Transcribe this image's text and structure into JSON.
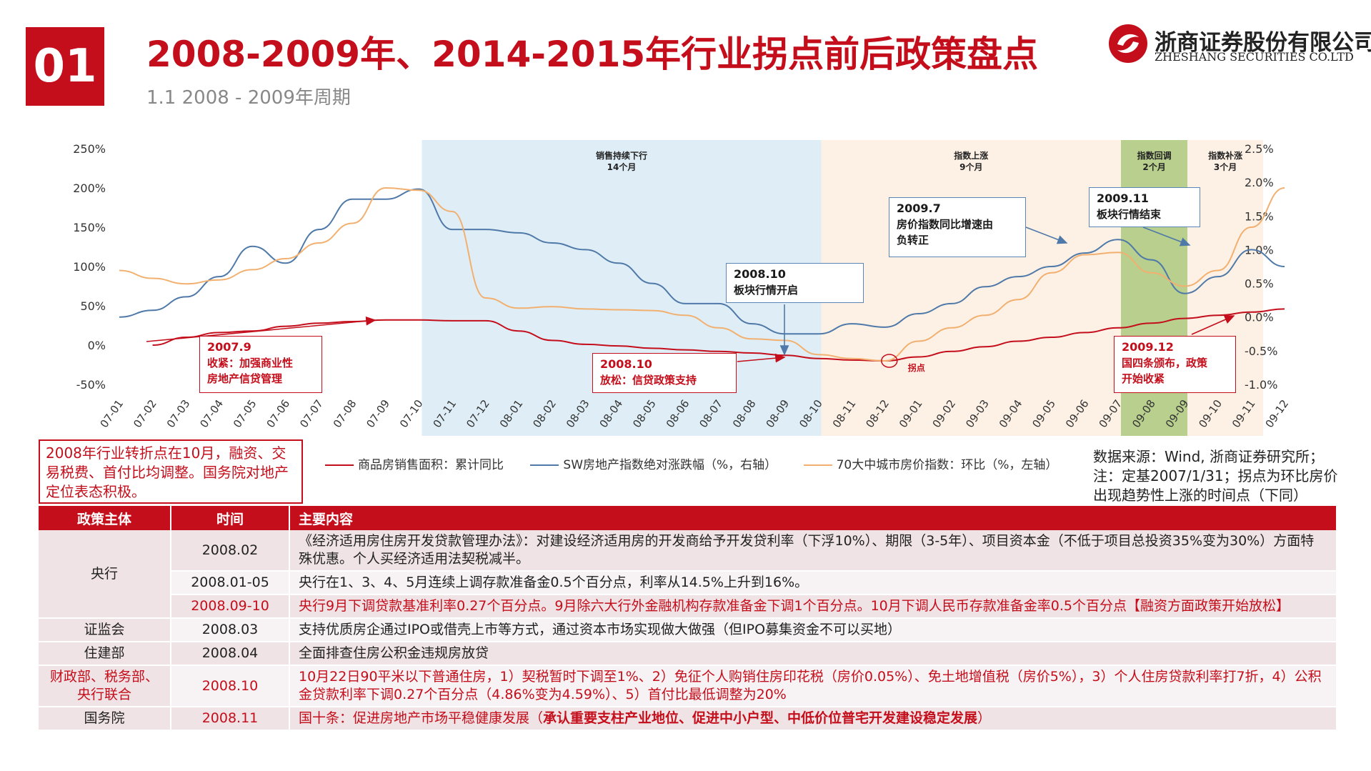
{
  "header": {
    "section_number": "01",
    "title": "2008-2009年、2014-2015年行业拐点前后政策盘点",
    "subtitle": "1.1 2008 - 2009年周期",
    "logo_cn": "浙商证券股份有限公司",
    "logo_en": "ZHESHANG SECURITIES CO.LTD",
    "brand_color": "#c40e1b"
  },
  "chart_data": {
    "type": "line",
    "x": [
      "07-01",
      "07-02",
      "07-03",
      "07-04",
      "07-05",
      "07-06",
      "07-07",
      "07-08",
      "07-09",
      "07-10",
      "07-11",
      "07-12",
      "08-01",
      "08-02",
      "08-03",
      "08-04",
      "08-05",
      "08-06",
      "08-07",
      "08-08",
      "08-09",
      "08-10",
      "08-11",
      "08-12",
      "09-01",
      "09-02",
      "09-03",
      "09-04",
      "09-05",
      "09-06",
      "09-07",
      "09-08",
      "09-09",
      "09-10",
      "09-11",
      "09-12"
    ],
    "left_axis": {
      "ticks": [
        "250%",
        "200%",
        "150%",
        "100%",
        "50%",
        "0%",
        "-50%"
      ],
      "ylim": [
        -50,
        250
      ]
    },
    "right_axis": {
      "ticks": [
        "2.5%",
        "2.0%",
        "1.5%",
        "1.0%",
        "0.5%",
        "0.0%",
        "-0.5%",
        "-1.0%"
      ],
      "ylim": [
        -1.0,
        2.5
      ]
    },
    "series": [
      {
        "name": "商品房销售面积：累计同比",
        "axis": "left",
        "color": "#c40e1b",
        "values": [
          null,
          0,
          10,
          16,
          18,
          24,
          28,
          30,
          32,
          32,
          31,
          31,
          18,
          6,
          1,
          -1,
          -4,
          -6,
          -8,
          -10,
          -13,
          -17,
          -19,
          -20,
          -15,
          -8,
          -2,
          5,
          10,
          16,
          22,
          28,
          34,
          38,
          42,
          46
        ]
      },
      {
        "name": "SW房地产指数绝对涨跌幅（%，右轴）",
        "axis": "right",
        "color": "#4f79a8",
        "values": [
          0,
          0.1,
          0.3,
          0.6,
          1.05,
          0.8,
          1.3,
          1.75,
          1.75,
          1.9,
          1.3,
          1.3,
          1.25,
          1.1,
          1.0,
          0.8,
          0.5,
          0.2,
          0.2,
          -0.1,
          -0.25,
          -0.25,
          -0.1,
          -0.15,
          0.05,
          0.2,
          0.45,
          0.6,
          0.75,
          0.95,
          1.15,
          0.85,
          0.35,
          0.6,
          1.0,
          0.75
        ]
      },
      {
        "name": "70大中城市房价指数：环比（%，左轴）",
        "axis": "left",
        "color": "#f2b070",
        "values": [
          95,
          85,
          78,
          83,
          96,
          110,
          130,
          155,
          200,
          197,
          170,
          60,
          47,
          49,
          46,
          45,
          44,
          38,
          22,
          8,
          6,
          -12,
          -17,
          -20,
          5,
          22,
          38,
          58,
          92,
          115,
          118,
          92,
          75,
          95,
          150,
          200
        ]
      }
    ],
    "phases": [
      {
        "label": "销售持续下行",
        "duration": "14个月",
        "from": "07-10",
        "to": "08-10",
        "color": "#dfeef6"
      },
      {
        "label": "指数上涨",
        "duration": "9个月",
        "from": "08-10",
        "to": "09-07",
        "color": "#fdf1e6"
      },
      {
        "label": "指数回调",
        "duration": "2个月",
        "from": "09-07",
        "to": "09-09",
        "color": "#b8cf8e"
      },
      {
        "label": "指数补涨",
        "duration": "3个月",
        "from": "09-09",
        "to": "09-12",
        "color": "#fdf1e6"
      }
    ],
    "inflection_label": "拐点",
    "grid": false
  },
  "callouts": {
    "c2007_9": {
      "date": "2007.9",
      "text1": "收紧：加强商业性",
      "text2": "房地产信贷管理"
    },
    "c2008_10_red": {
      "date": "2008.10",
      "text1": "放松：信贷政策支持"
    },
    "c2008_10_blue": {
      "date": "2008.10",
      "text1": "板块行情开启"
    },
    "c2009_7": {
      "date": "2009.7",
      "text1": "房价指数同比增速由",
      "text2": "负转正"
    },
    "c2009_11": {
      "date": "2009.11",
      "text1": "板块行情结束"
    },
    "c2009_12": {
      "date": "2009.12",
      "text1": "国四条颁布，政策",
      "text2": "开始收紧"
    }
  },
  "summary": "2008年行业转折点在10月，融资、交易税费、首付比均调整。国务院对地产定位表态积极。",
  "legend": {
    "s1": "商品房销售面积：累计同比",
    "s2": "SW房地产指数绝对涨跌幅（%，右轴）",
    "s3": "70大中城市房价指数：环比（%，左轴）"
  },
  "source": "数据来源：Wind, 浙商证券研究所；注：定基2007/1/31；拐点为环比房价出现趋势性上涨的时间点（下同）",
  "table": {
    "headers": [
      "政策主体",
      "时间",
      "主要内容"
    ],
    "rows": [
      {
        "entity": "央行",
        "date": "2008.02",
        "content": "《经济适用房住房开发贷款管理办法》：对建设经济适用房的开发商给予开发贷利率（下浮10%）、期限（3-5年）、项目资本金（不低于项目总投资35%变为30%）方面特殊优惠。个人买经济适用法契税减半。"
      },
      {
        "date": "2008.01-05",
        "content": "央行在1、3、4、5月连续上调存款准备金0.5个百分点，利率从14.5%上升到16%。"
      },
      {
        "date": "2008.09-10",
        "content": "央行9月下调贷款基准利率0.27个百分点。9月除六大行外金融机构存款准备金下调1个百分点。10月下调人民币存款准备金率0.5个百分点【融资方面政策开始放松】"
      },
      {
        "entity": "证监会",
        "date": "2008.03",
        "content": "支持优质房企通过IPO或借壳上市等方式，通过资本市场实现做大做强（但IPO募集资金不可以买地）"
      },
      {
        "entity": "住建部",
        "date": "2008.04",
        "content": "全面排查住房公积金违规房放贷"
      },
      {
        "entity": "财政部、税务部、央行联合",
        "date": "2008.10",
        "content": "10月22日90平米以下普通住房，1）契税暂时下调至1%、2）免征个人购销住房印花税（房价0.05%）、免土地增值税（房价5%），3）个人住房贷款利率打7折，4）公积金贷款利率下调0.27个百分点（4.86%变为4.59%）、5）首付比最低调整为20%"
      },
      {
        "entity": "国务院",
        "date": "2008.11",
        "content_a": "国十条：促进房地产市场平稳健康发展（",
        "content_b": "承认重要支柱产业地位、促进中小户型、中低价位普宅开发建设稳定发展",
        "content_c": "）"
      }
    ]
  }
}
